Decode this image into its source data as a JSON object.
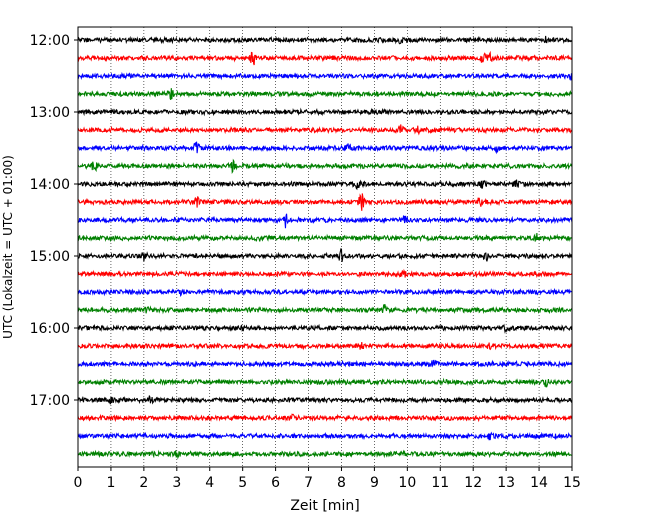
{
  "chart_data": {
    "type": "line",
    "title": "",
    "xlabel": "Zeit  [min]",
    "ylabel": "UTC (Lokalzeit = UTC + 01:00)",
    "xlim": [
      0,
      15
    ],
    "x_ticks": [
      "0",
      "1",
      "2",
      "3",
      "4",
      "5",
      "6",
      "7",
      "8",
      "9",
      "10",
      "11",
      "12",
      "13",
      "14",
      "15"
    ],
    "y_ticks": [
      "12:00",
      "13:00",
      "14:00",
      "15:00",
      "16:00",
      "17:00"
    ],
    "grid": "vertical dotted lines at each minute",
    "trace_colors": [
      "#000000",
      "#ff0000",
      "#0000ff",
      "#008000"
    ],
    "traces": [
      {
        "start": "12:00",
        "color": "#000000",
        "events": [
          [
            9.8,
            0.35
          ],
          [
            14.2,
            0.25
          ]
        ]
      },
      {
        "start": "12:15",
        "color": "#ff0000",
        "events": [
          [
            5.3,
            1.0
          ],
          [
            12.3,
            0.6
          ],
          [
            12.5,
            0.5
          ]
        ]
      },
      {
        "start": "12:30",
        "color": "#0000ff",
        "events": [
          [
            15.0,
            0.3
          ]
        ]
      },
      {
        "start": "12:45",
        "color": "#008000",
        "events": [
          [
            2.8,
            0.55
          ]
        ]
      },
      {
        "start": "13:00",
        "color": "#000000",
        "events": [
          [
            9.4,
            0.2
          ]
        ]
      },
      {
        "start": "13:15",
        "color": "#ff0000",
        "events": [
          [
            9.8,
            0.4
          ],
          [
            10.3,
            0.35
          ]
        ]
      },
      {
        "start": "13:30",
        "color": "#0000ff",
        "events": [
          [
            3.6,
            0.6
          ],
          [
            8.2,
            0.35
          ],
          [
            12.7,
            0.35
          ]
        ]
      },
      {
        "start": "13:45",
        "color": "#008000",
        "events": [
          [
            0.5,
            0.55
          ],
          [
            4.7,
            0.55
          ]
        ]
      },
      {
        "start": "14:00",
        "color": "#000000",
        "events": [
          [
            8.5,
            0.45
          ],
          [
            12.3,
            0.45
          ],
          [
            13.3,
            0.5
          ]
        ]
      },
      {
        "start": "14:15",
        "color": "#ff0000",
        "events": [
          [
            3.6,
            0.5
          ],
          [
            8.6,
            1.0
          ],
          [
            12.2,
            0.35
          ]
        ]
      },
      {
        "start": "14:30",
        "color": "#0000ff",
        "events": [
          [
            6.3,
            0.8
          ],
          [
            9.9,
            0.3
          ]
        ]
      },
      {
        "start": "14:45",
        "color": "#008000",
        "events": [
          [
            5.5,
            0.35
          ],
          [
            13.9,
            0.35
          ]
        ]
      },
      {
        "start": "15:00",
        "color": "#000000",
        "events": [
          [
            2.0,
            0.35
          ],
          [
            8.0,
            0.85
          ],
          [
            12.4,
            0.5
          ]
        ]
      },
      {
        "start": "15:15",
        "color": "#ff0000",
        "events": [
          [
            9.9,
            0.4
          ]
        ]
      },
      {
        "start": "15:30",
        "color": "#0000ff",
        "events": [
          [
            3.1,
            0.25
          ]
        ]
      },
      {
        "start": "15:45",
        "color": "#008000",
        "events": [
          [
            9.3,
            0.5
          ],
          [
            2.1,
            0.25
          ]
        ]
      },
      {
        "start": "16:00",
        "color": "#000000",
        "events": [
          [
            5.0,
            0.3
          ],
          [
            13.0,
            0.3
          ]
        ]
      },
      {
        "start": "16:15",
        "color": "#ff0000",
        "events": [
          [
            8.6,
            0.3
          ],
          [
            12.5,
            0.45
          ]
        ]
      },
      {
        "start": "16:30",
        "color": "#0000ff",
        "events": [
          [
            10.8,
            0.3
          ]
        ]
      },
      {
        "start": "16:45",
        "color": "#008000",
        "events": [
          [
            14.2,
            0.4
          ]
        ]
      },
      {
        "start": "17:00",
        "color": "#000000",
        "events": [
          [
            1.0,
            0.3
          ],
          [
            2.2,
            0.35
          ]
        ]
      },
      {
        "start": "17:15",
        "color": "#ff0000",
        "events": [
          [
            6.5,
            0.25
          ]
        ]
      },
      {
        "start": "17:30",
        "color": "#0000ff",
        "events": [
          [
            12.5,
            0.3
          ]
        ]
      },
      {
        "start": "17:45",
        "color": "#008000",
        "events": [
          [
            3.0,
            0.25
          ]
        ]
      }
    ]
  }
}
